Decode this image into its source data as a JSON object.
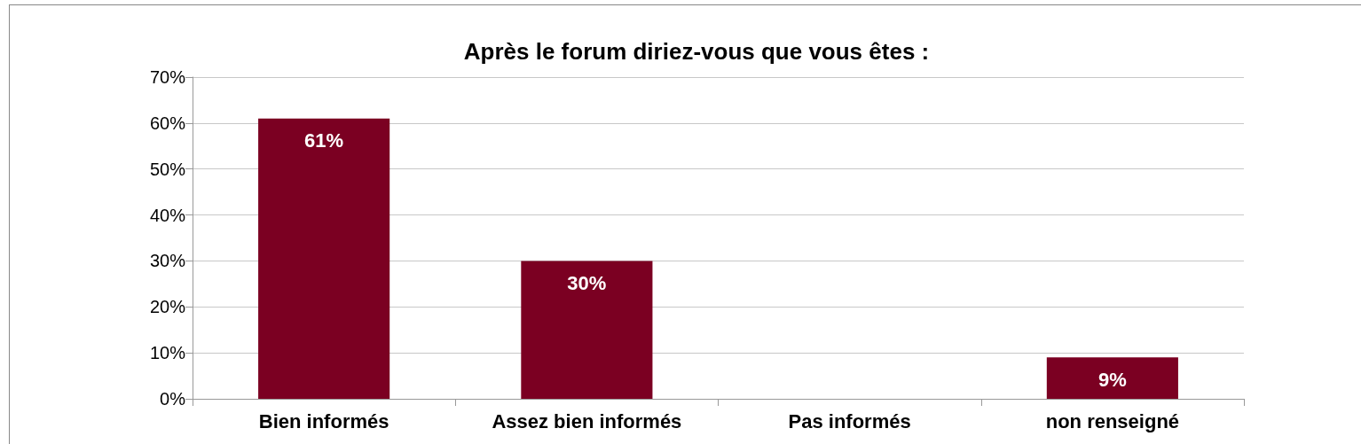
{
  "chart_data": {
    "type": "bar",
    "title": "Après le forum diriez-vous que vous êtes :",
    "categories": [
      "Bien informés",
      "Assez bien informés",
      "Pas informés",
      "non renseigné"
    ],
    "values": [
      61,
      30,
      0,
      9
    ],
    "color": "#7b0022",
    "value_labels": [
      "61%",
      "30%",
      null,
      "9%"
    ],
    "ylim": [
      0,
      70
    ],
    "yticks": [
      {
        "value": 0,
        "label": "0%"
      },
      {
        "value": 10,
        "label": "10%"
      },
      {
        "value": 20,
        "label": "20%"
      },
      {
        "value": 30,
        "label": "30%"
      },
      {
        "value": 40,
        "label": "40%"
      },
      {
        "value": 50,
        "label": "50%"
      },
      {
        "value": 60,
        "label": "60%"
      },
      {
        "value": 70,
        "label": "70%"
      }
    ],
    "grid": "y"
  }
}
